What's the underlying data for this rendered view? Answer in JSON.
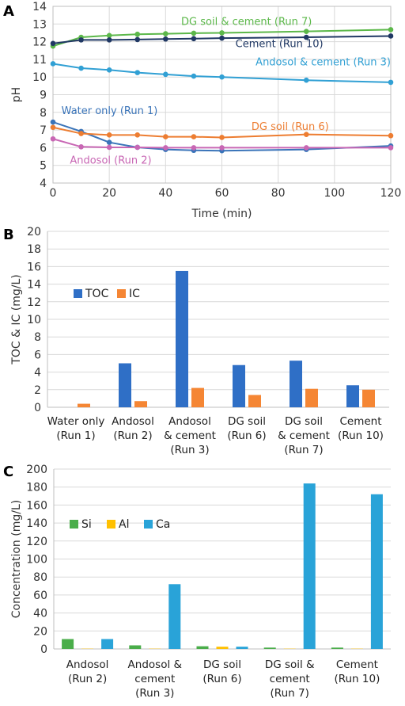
{
  "colors": {
    "water": "#3a74b9",
    "andosol": "#c867b4",
    "dg_soil": "#ed7d31",
    "cement": "#203864",
    "dg_cement": "#5cb84a",
    "andosol_cement": "#31a0d4",
    "toc": "#2f6fc6",
    "ic": "#f58634",
    "si": "#4aad4a",
    "al": "#ffc000",
    "ca": "#29a3d8"
  },
  "panels": {
    "a": "A",
    "b": "B",
    "c": "C"
  },
  "chart_data": [
    {
      "type": "line",
      "panel": "A",
      "xlabel": "Time (min)",
      "ylabel": "pH",
      "xlim": [
        0,
        120
      ],
      "ylim": [
        4,
        14
      ],
      "x_ticks": [
        0,
        20,
        40,
        60,
        80,
        100,
        120
      ],
      "y_ticks": [
        4,
        5,
        6,
        7,
        8,
        9,
        10,
        11,
        12,
        13,
        14
      ],
      "grid": true,
      "series": [
        {
          "name": "DG soil & cement (Run 7)",
          "color_key": "dg_cement",
          "x": [
            0,
            10,
            20,
            30,
            40,
            50,
            60,
            90,
            120
          ],
          "y": [
            11.75,
            12.25,
            12.35,
            12.42,
            12.45,
            12.48,
            12.5,
            12.58,
            12.68
          ]
        },
        {
          "name": "Cement (Run 10)",
          "color_key": "cement",
          "x": [
            0,
            10,
            20,
            30,
            40,
            50,
            60,
            90,
            120
          ],
          "y": [
            11.9,
            12.1,
            12.1,
            12.12,
            12.15,
            12.17,
            12.2,
            12.25,
            12.32
          ]
        },
        {
          "name": "Andosol & cement (Run 3)",
          "color_key": "andosol_cement",
          "x": [
            0,
            10,
            20,
            30,
            40,
            50,
            60,
            90,
            120
          ],
          "y": [
            10.75,
            10.5,
            10.4,
            10.25,
            10.15,
            10.05,
            10.0,
            9.82,
            9.7
          ]
        },
        {
          "name": "Water only (Run 1)",
          "color_key": "water",
          "x": [
            0,
            10,
            20,
            30,
            40,
            50,
            60,
            90,
            120
          ],
          "y": [
            7.45,
            6.92,
            6.3,
            6.02,
            5.9,
            5.85,
            5.83,
            5.9,
            6.1
          ]
        },
        {
          "name": "DG soil (Run 6)",
          "color_key": "dg_soil",
          "x": [
            0,
            10,
            20,
            30,
            40,
            50,
            60,
            90,
            120
          ],
          "y": [
            7.15,
            6.8,
            6.72,
            6.72,
            6.62,
            6.62,
            6.58,
            6.75,
            6.68
          ]
        },
        {
          "name": "Andosol (Run 2)",
          "color_key": "andosol",
          "x": [
            0,
            10,
            20,
            30,
            40,
            50,
            60,
            90,
            120
          ],
          "y": [
            6.5,
            6.05,
            6.02,
            6.02,
            6.0,
            6.0,
            6.0,
            6.0,
            6.0
          ]
        }
      ]
    },
    {
      "type": "bar",
      "panel": "B",
      "ylabel": "TOC & IC (mg/L)",
      "ylim": [
        0,
        20
      ],
      "y_ticks": [
        0,
        2,
        4,
        6,
        8,
        10,
        12,
        14,
        16,
        18,
        20
      ],
      "grid": true,
      "legend": "top-left",
      "categories": [
        [
          "Water only",
          "(Run 1)"
        ],
        [
          "Andosol",
          "(Run 2)"
        ],
        [
          "Andosol",
          "& cement",
          "(Run 3)"
        ],
        [
          "DG soil",
          "(Run 6)"
        ],
        [
          "DG soil",
          "& cement",
          "(Run 7)"
        ],
        [
          "Cement",
          "(Run 10)"
        ]
      ],
      "series": [
        {
          "name": "TOC",
          "color_key": "toc",
          "values": [
            0.0,
            5.0,
            15.5,
            4.8,
            5.3,
            2.5
          ]
        },
        {
          "name": "IC",
          "color_key": "ic",
          "values": [
            0.4,
            0.7,
            2.2,
            1.4,
            2.1,
            2.0
          ]
        }
      ]
    },
    {
      "type": "bar",
      "panel": "C",
      "ylabel": "Concentration (mg/L)",
      "ylim": [
        0,
        200
      ],
      "y_ticks": [
        0,
        20,
        40,
        60,
        80,
        100,
        120,
        140,
        160,
        180,
        200
      ],
      "grid": true,
      "legend": "top-left",
      "categories": [
        [
          "Andosol",
          "(Run 2)"
        ],
        [
          "Andosol &",
          "cement",
          "(Run 3)"
        ],
        [
          "DG soil",
          "(Run 6)"
        ],
        [
          "DG soil &",
          "cement",
          "(Run 7)"
        ],
        [
          "Cement",
          "(Run 10)"
        ]
      ],
      "series": [
        {
          "name": "Si",
          "color_key": "si",
          "values": [
            11,
            4,
            3,
            1.5,
            1.5
          ]
        },
        {
          "name": "Al",
          "color_key": "al",
          "values": [
            0.3,
            0.3,
            2.5,
            0.3,
            0.3
          ]
        },
        {
          "name": "Ca",
          "color_key": "ca",
          "values": [
            11,
            72,
            2.5,
            184,
            172
          ]
        }
      ]
    }
  ]
}
